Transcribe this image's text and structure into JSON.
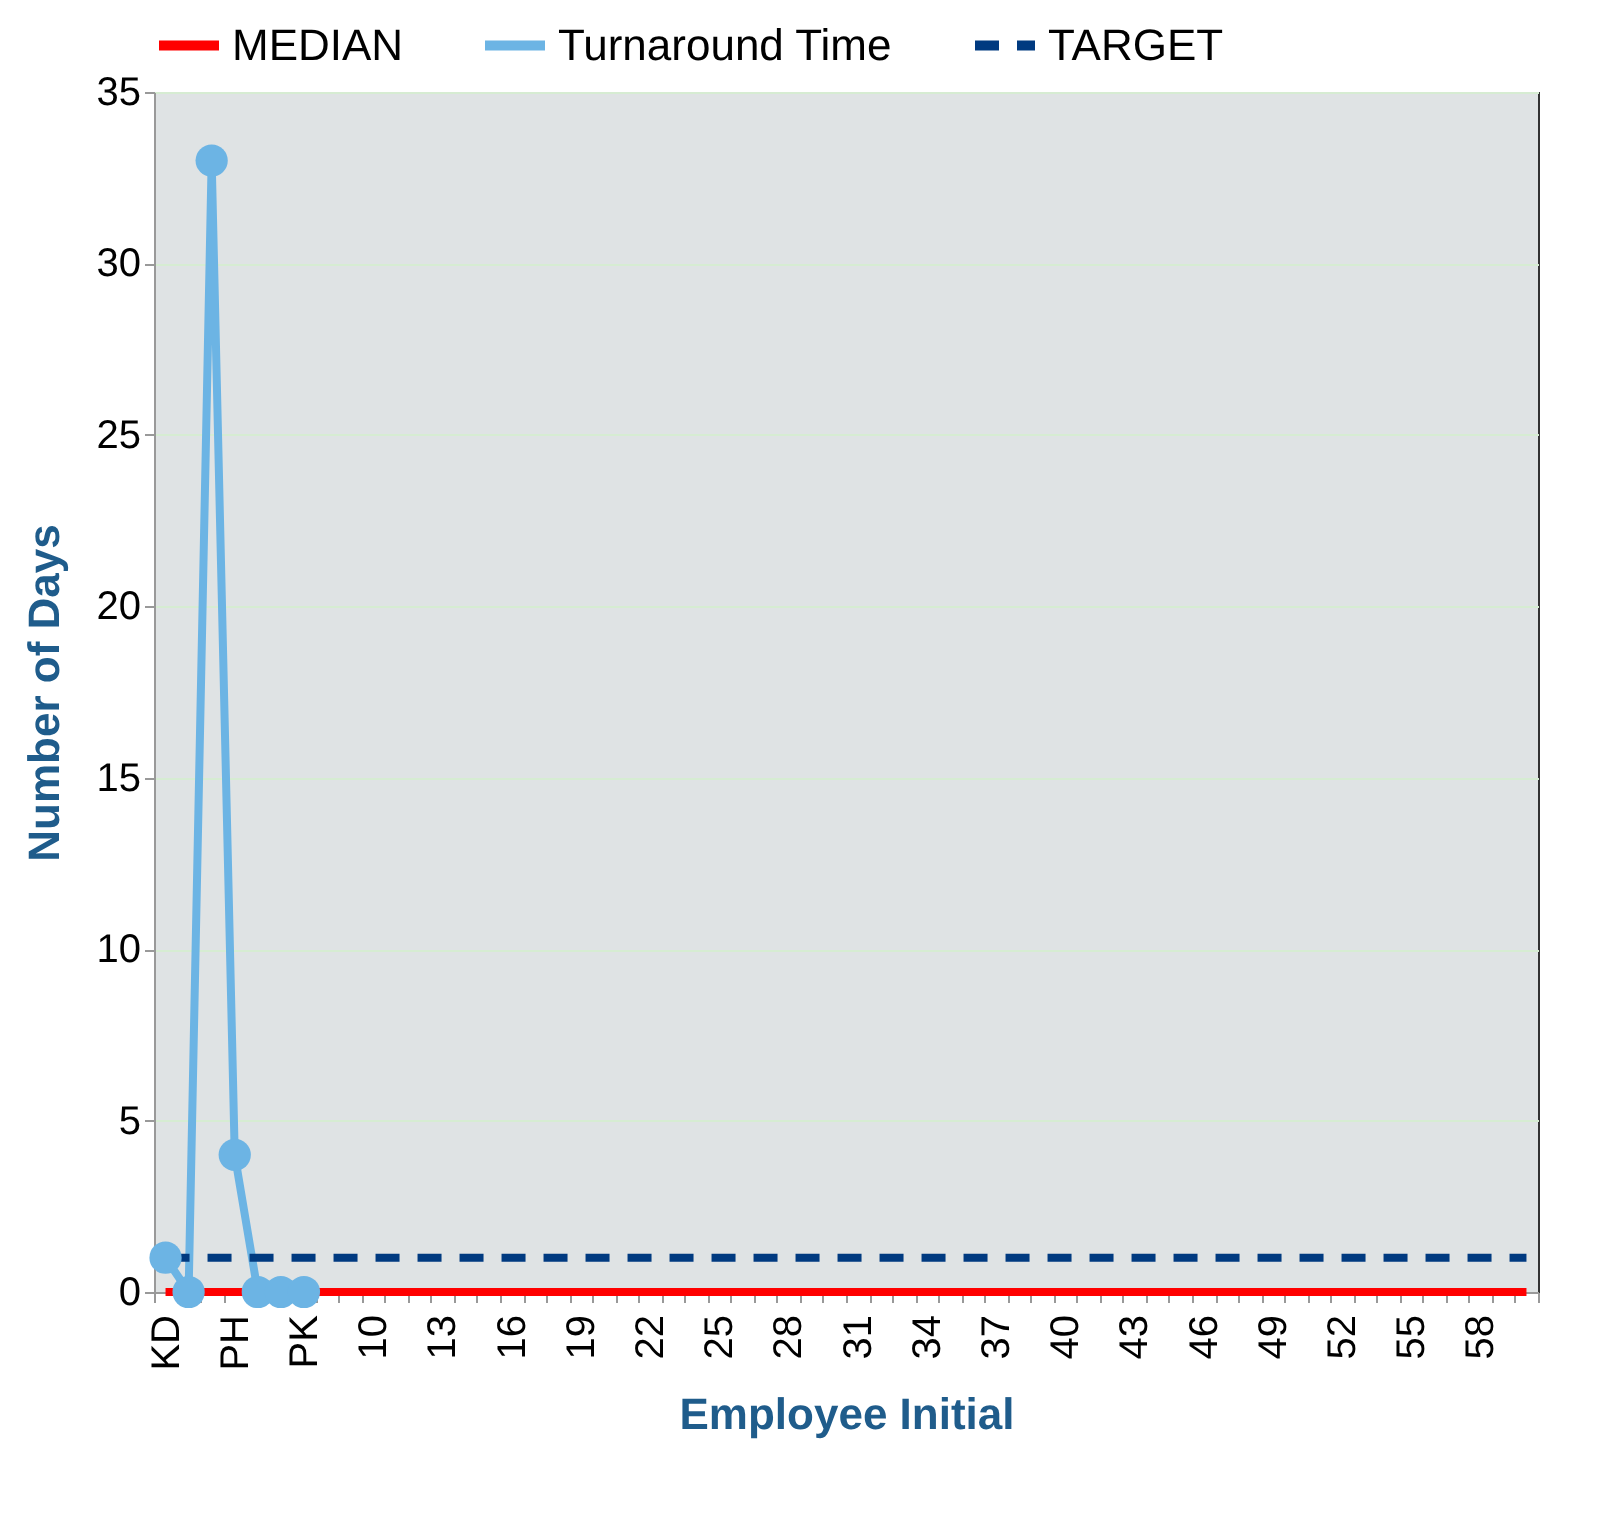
{
  "chart_data": {
    "type": "line",
    "xlabel": "Employee Initial",
    "ylabel": "Number of Days",
    "categories": [
      "KD",
      null,
      null,
      "PH",
      null,
      null,
      "PK",
      null,
      null,
      "10",
      null,
      null,
      "13",
      null,
      null,
      "16",
      null,
      null,
      "19",
      null,
      null,
      "22",
      null,
      null,
      "25",
      null,
      null,
      "28",
      null,
      null,
      "31",
      null,
      null,
      "34",
      null,
      null,
      "37",
      null,
      null,
      "40",
      null,
      null,
      "43",
      null,
      null,
      "46",
      null,
      null,
      "49",
      null,
      null,
      "52",
      null,
      null,
      "55",
      null,
      null,
      "58",
      null,
      null
    ],
    "series": [
      {
        "name": "MEDIAN",
        "color": "#ff0000",
        "line_style": "solid",
        "marker": "none",
        "values": [
          0,
          0,
          0,
          0,
          0,
          0,
          0,
          0,
          0,
          0,
          0,
          0,
          0,
          0,
          0,
          0,
          0,
          0,
          0,
          0,
          0,
          0,
          0,
          0,
          0,
          0,
          0,
          0,
          0,
          0,
          0,
          0,
          0,
          0,
          0,
          0,
          0,
          0,
          0,
          0,
          0,
          0,
          0,
          0,
          0,
          0,
          0,
          0,
          0,
          0,
          0,
          0,
          0,
          0,
          0,
          0,
          0,
          0,
          0,
          0
        ]
      },
      {
        "name": "Turnaround Time",
        "color": "#6cb4e4",
        "line_style": "solid",
        "marker": "circle",
        "values": [
          1,
          0,
          33,
          4,
          0,
          0,
          0,
          null,
          null,
          null,
          null,
          null,
          null,
          null,
          null,
          null,
          null,
          null,
          null,
          null,
          null,
          null,
          null,
          null,
          null,
          null,
          null,
          null,
          null,
          null,
          null,
          null,
          null,
          null,
          null,
          null,
          null,
          null,
          null,
          null,
          null,
          null,
          null,
          null,
          null,
          null,
          null,
          null,
          null,
          null,
          null,
          null,
          null,
          null,
          null,
          null,
          null,
          null,
          null,
          null
        ]
      },
      {
        "name": "TARGET",
        "color": "#003a80",
        "line_style": "dashed",
        "marker": "none",
        "values": [
          1,
          1,
          1,
          1,
          1,
          1,
          1,
          1,
          1,
          1,
          1,
          1,
          1,
          1,
          1,
          1,
          1,
          1,
          1,
          1,
          1,
          1,
          1,
          1,
          1,
          1,
          1,
          1,
          1,
          1,
          1,
          1,
          1,
          1,
          1,
          1,
          1,
          1,
          1,
          1,
          1,
          1,
          1,
          1,
          1,
          1,
          1,
          1,
          1,
          1,
          1,
          1,
          1,
          1,
          1,
          1,
          1,
          1,
          1,
          1
        ]
      }
    ],
    "ylim": [
      0,
      35
    ],
    "yticks": [
      0,
      5,
      10,
      15,
      20,
      25,
      30,
      35
    ],
    "grid": "y",
    "legend": "top"
  }
}
